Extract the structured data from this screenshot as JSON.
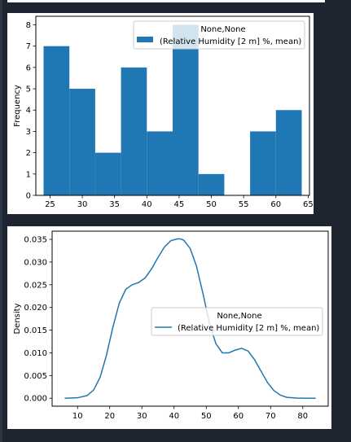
{
  "charts": {
    "histogram": {
      "ylabel": "Frequency",
      "legend_title": "None,None",
      "legend_label": "(Relative Humidity [2 m] %, mean)"
    },
    "density": {
      "ylabel": "Density",
      "legend_title": "None,None",
      "legend_label": "(Relative Humidity [2 m] %, mean)"
    }
  },
  "chart_data": [
    {
      "type": "bar",
      "title": "",
      "xlabel": "",
      "ylabel": "Frequency",
      "legend_placement": "top-right",
      "legend_title": "None,None",
      "color": "#1f77b4",
      "bin_edges": [
        24,
        28,
        32,
        36,
        40,
        44,
        48,
        52,
        56,
        60,
        64
      ],
      "values": [
        7,
        5,
        2,
        6,
        3,
        8,
        1,
        0,
        3,
        4
      ],
      "series": [
        {
          "name": "(Relative Humidity [2 m] %, mean)",
          "values": [
            7,
            5,
            2,
            6,
            3,
            8,
            1,
            0,
            3,
            4
          ]
        }
      ],
      "xlim": [
        22.8,
        65.2
      ],
      "ylim": [
        0,
        8.4
      ],
      "x_ticks": [
        25,
        30,
        35,
        40,
        45,
        50,
        55,
        60,
        65
      ],
      "y_ticks": [
        0,
        1,
        2,
        3,
        4,
        5,
        6,
        7,
        8
      ]
    },
    {
      "type": "line",
      "title": "",
      "xlabel": "",
      "ylabel": "Density",
      "legend_placement": "center-right",
      "legend_title": "None,None",
      "color": "#1f77b4",
      "series": [
        {
          "name": "(Relative Humidity [2 m] %, mean)",
          "x": [
            6,
            10,
            13,
            15,
            17,
            19,
            21,
            23,
            25,
            27,
            29,
            31,
            33,
            35,
            37,
            39,
            41,
            42,
            43,
            45,
            47,
            49,
            51,
            53,
            55,
            57,
            59,
            61,
            63,
            65,
            67,
            69,
            71,
            73,
            75,
            78,
            81,
            84
          ],
          "y": [
            0.0,
            0.0001,
            0.0006,
            0.0018,
            0.0046,
            0.0095,
            0.0157,
            0.021,
            0.024,
            0.025,
            0.0255,
            0.0265,
            0.0285,
            0.031,
            0.0333,
            0.0347,
            0.0351,
            0.0351,
            0.0348,
            0.033,
            0.029,
            0.023,
            0.0165,
            0.012,
            0.01,
            0.01,
            0.0106,
            0.011,
            0.0104,
            0.0085,
            0.006,
            0.0035,
            0.0017,
            0.0007,
            0.0002,
            5e-05,
            0.0,
            0.0
          ]
        }
      ],
      "xlim": [
        2.1,
        87.9
      ],
      "ylim": [
        -0.00175,
        0.0368
      ],
      "x_ticks": [
        10,
        20,
        30,
        40,
        50,
        60,
        70,
        80
      ],
      "y_ticks": [
        0.0,
        0.005,
        0.01,
        0.015,
        0.02,
        0.025,
        0.03,
        0.035
      ],
      "y_tick_labels": [
        "0.000",
        "0.005",
        "0.010",
        "0.015",
        "0.020",
        "0.025",
        "0.030",
        "0.035"
      ]
    }
  ]
}
